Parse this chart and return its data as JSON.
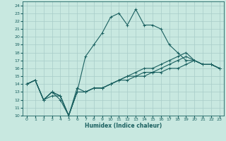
{
  "xlabel": "Humidex (Indice chaleur)",
  "xlim": [
    -0.5,
    23.5
  ],
  "ylim": [
    10,
    24.5
  ],
  "yticks": [
    10,
    11,
    12,
    13,
    14,
    15,
    16,
    17,
    18,
    19,
    20,
    21,
    22,
    23,
    24
  ],
  "xticks": [
    0,
    1,
    2,
    3,
    4,
    5,
    6,
    7,
    8,
    9,
    10,
    11,
    12,
    13,
    14,
    15,
    16,
    17,
    18,
    19,
    20,
    21,
    22,
    23
  ],
  "bg_color": "#c8e8e0",
  "grid_color": "#a8ccc8",
  "line_color": "#1a6060",
  "lines": [
    [
      0,
      14,
      1,
      14.5,
      2,
      12,
      3,
      13,
      4,
      12,
      5,
      10,
      6,
      13,
      7,
      17.5,
      8,
      19,
      9,
      20.5,
      10,
      22.5,
      11,
      23,
      12,
      21.5,
      13,
      23.5,
      14,
      21.5,
      15,
      21.5,
      16,
      21,
      17,
      19,
      18,
      18,
      19,
      17,
      20,
      17,
      21,
      16.5,
      22,
      16.5,
      23,
      16
    ],
    [
      0,
      14,
      1,
      14.5,
      2,
      12,
      3,
      13,
      4,
      12.5,
      5,
      10,
      6,
      13.5,
      7,
      13,
      8,
      13.5,
      9,
      13.5,
      10,
      14,
      11,
      14.5,
      12,
      15,
      13,
      15.5,
      14,
      16,
      15,
      16,
      16,
      16.5,
      17,
      17,
      18,
      17.5,
      19,
      18,
      20,
      17,
      21,
      16.5,
      22,
      16.5,
      23,
      16
    ],
    [
      0,
      14,
      1,
      14.5,
      2,
      12,
      3,
      13,
      4,
      12.5,
      5,
      10,
      6,
      13,
      7,
      13,
      8,
      13.5,
      9,
      13.5,
      10,
      14,
      11,
      14.5,
      12,
      15,
      13,
      15,
      14,
      15.5,
      15,
      15.5,
      16,
      16,
      17,
      16.5,
      18,
      17,
      19,
      17.5,
      20,
      17,
      21,
      16.5,
      22,
      16.5,
      23,
      16
    ],
    [
      0,
      14,
      1,
      14.5,
      2,
      12,
      3,
      12.5,
      4,
      12.5,
      5,
      10,
      6,
      13,
      7,
      13,
      8,
      13.5,
      9,
      13.5,
      10,
      14,
      11,
      14.5,
      12,
      14.5,
      13,
      15,
      14,
      15,
      15,
      15.5,
      16,
      15.5,
      17,
      16,
      18,
      16,
      19,
      16.5,
      20,
      17,
      21,
      16.5,
      22,
      16.5,
      23,
      16
    ]
  ]
}
